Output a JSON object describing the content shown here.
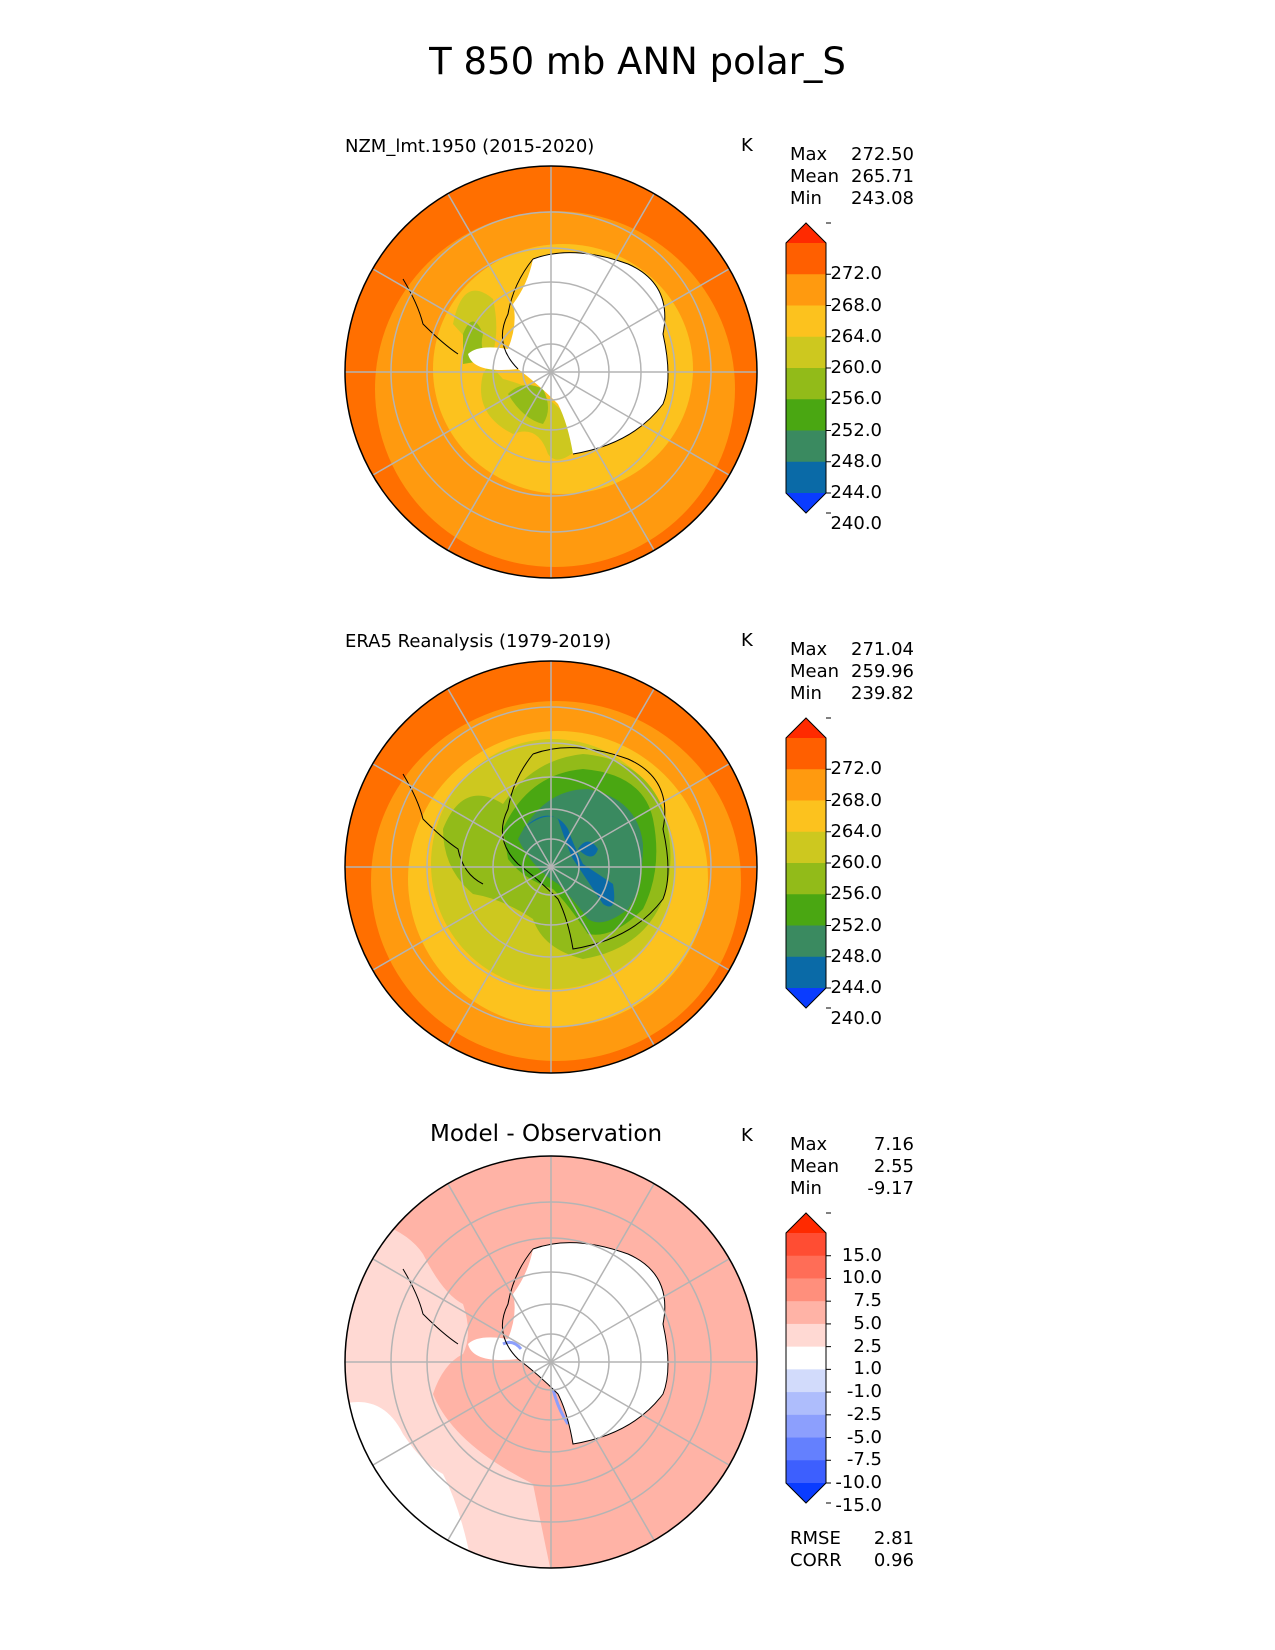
{
  "title": "T 850 mb ANN polar_S",
  "panels": [
    {
      "title": "NZM_lmt.1950 (2015-2020)",
      "units": "K",
      "stats": [
        {
          "label": "Max",
          "value": "272.50"
        },
        {
          "label": "Mean",
          "value": "265.71"
        },
        {
          "label": "Min",
          "value": "243.08"
        }
      ]
    },
    {
      "title": "ERA5 Reanalysis (1979-2019)",
      "units": "K",
      "stats": [
        {
          "label": "Max",
          "value": "271.04"
        },
        {
          "label": "Mean",
          "value": "259.96"
        },
        {
          "label": "Min",
          "value": "239.82"
        }
      ]
    },
    {
      "title": "Model - Observation",
      "units": "K",
      "stats": [
        {
          "label": "Max",
          "value": "7.16"
        },
        {
          "label": "Mean",
          "value": "2.55"
        },
        {
          "label": "Min",
          "value": "-9.17"
        }
      ],
      "metrics": [
        {
          "label": "RMSE",
          "value": "2.81"
        },
        {
          "label": "CORR",
          "value": "0.96"
        }
      ]
    }
  ],
  "colorbars": {
    "temperature": {
      "ticks": [
        "272.0",
        "268.0",
        "264.0",
        "260.0",
        "256.0",
        "252.0",
        "248.0",
        "244.0",
        "240.0"
      ],
      "colors": [
        "#ff2a00",
        "#ff5f00",
        "#ff9a0f",
        "#fcc21e",
        "#cdc81f",
        "#92bb19",
        "#4aa712",
        "#3a8a60",
        "#0a6aa7",
        "#0a3cff"
      ]
    },
    "difference": {
      "ticks": [
        "15.0",
        "10.0",
        "7.5",
        "5.0",
        "2.5",
        "1.0",
        "-1.0",
        "-2.5",
        "-5.0",
        "-7.5",
        "-10.0",
        "-15.0"
      ],
      "colors": [
        "#ff2a00",
        "#ff4d33",
        "#ff6d57",
        "#ff8f7c",
        "#ffb3a6",
        "#ffd9d3",
        "#ffffff",
        "#d2dbfb",
        "#aebdfc",
        "#8c9ffd",
        "#6480fe",
        "#3d5ffe",
        "#0a3cff"
      ]
    }
  },
  "chart_data": [
    {
      "type": "heatmap",
      "title": "NZM_lmt.1950 (2015-2020)",
      "projection": "south polar stereographic",
      "units": "K",
      "levels": [
        240,
        244,
        248,
        252,
        256,
        260,
        264,
        268,
        272
      ],
      "max": 272.5,
      "mean": 265.71,
      "min": 243.08
    },
    {
      "type": "heatmap",
      "title": "ERA5 Reanalysis (1979-2019)",
      "projection": "south polar stereographic",
      "units": "K",
      "levels": [
        240,
        244,
        248,
        252,
        256,
        260,
        264,
        268,
        272
      ],
      "max": 271.04,
      "mean": 259.96,
      "min": 239.82
    },
    {
      "type": "heatmap",
      "title": "Model - Observation",
      "projection": "south polar stereographic",
      "units": "K",
      "levels": [
        -15,
        -10,
        -7.5,
        -5,
        -2.5,
        -1,
        1,
        2.5,
        5,
        7.5,
        10,
        15
      ],
      "max": 7.16,
      "mean": 2.55,
      "min": -9.17,
      "rmse": 2.81,
      "corr": 0.96
    }
  ]
}
